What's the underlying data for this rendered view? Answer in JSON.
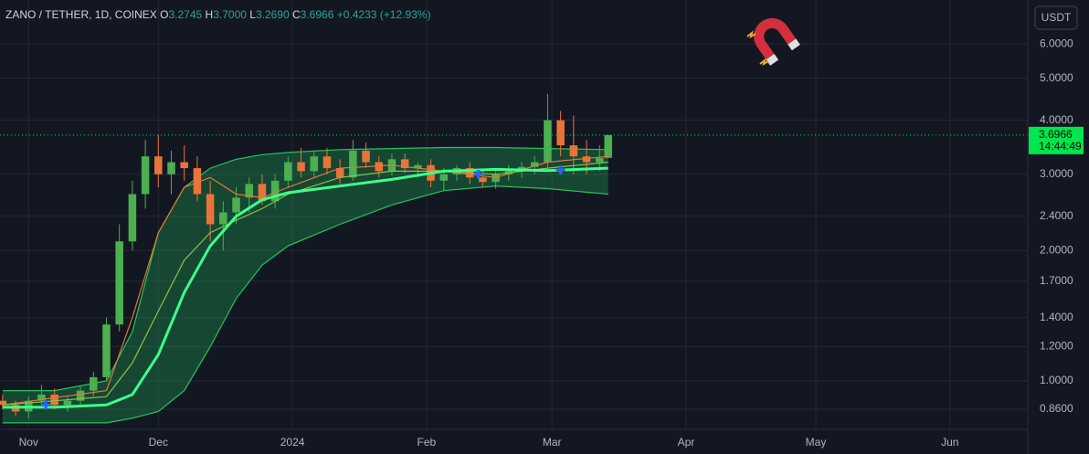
{
  "header": {
    "symbol": "ZANO / TETHER, 1D, COINEX",
    "o": "O",
    "o_value": "3.2745",
    "h": "H",
    "h_value": "3.7000",
    "l": "L",
    "l_value": "3.2690",
    "c": "C",
    "c_value": "3.6966",
    "change": "+0.4233 (+12.93%)"
  },
  "currency_button": "USDT",
  "chart_data": {
    "type": "candlestick",
    "log_scale": true,
    "grid": true,
    "ylim": [
      0.773,
      7.58
    ],
    "yticks": [
      {
        "value": 0.86,
        "label": "0.8600"
      },
      {
        "value": 1.0,
        "label": "1.0000"
      },
      {
        "value": 1.2,
        "label": "1.2000"
      },
      {
        "value": 1.4,
        "label": "1.4000"
      },
      {
        "value": 1.7,
        "label": "1.7000"
      },
      {
        "value": 2.0,
        "label": "2.0000"
      },
      {
        "value": 2.4,
        "label": "2.4000"
      },
      {
        "value": 3.0,
        "label": "3.0000"
      },
      {
        "value": 4.0,
        "label": "4.0000"
      },
      {
        "value": 5.0,
        "label": "5.0000"
      },
      {
        "value": 6.0,
        "label": "6.0000"
      }
    ],
    "xlim": [
      -0.6,
      237
    ],
    "xticks": [
      {
        "value": 6,
        "label": "Nov"
      },
      {
        "value": 36,
        "label": "Dec"
      },
      {
        "value": 67,
        "label": "2024"
      },
      {
        "value": 98,
        "label": "Feb"
      },
      {
        "value": 127,
        "label": "Mar"
      },
      {
        "value": 158,
        "label": "Apr"
      },
      {
        "value": 188,
        "label": "May"
      },
      {
        "value": 219,
        "label": "Jun"
      }
    ],
    "up_color": "#4caf50",
    "down_color": "#e8743b",
    "x": [
      0,
      3,
      6,
      9,
      12,
      15,
      18,
      21,
      24,
      27,
      30,
      33,
      36,
      39,
      42,
      45,
      48,
      51,
      54,
      57,
      60,
      63,
      66,
      69,
      72,
      75,
      78,
      81,
      84,
      87,
      90,
      93,
      96,
      99,
      102,
      105,
      108,
      111,
      114,
      117,
      120,
      123,
      126,
      129,
      132,
      135,
      138,
      140
    ],
    "open": [
      0.9,
      0.88,
      0.85,
      0.9,
      0.93,
      0.88,
      0.9,
      0.95,
      1.02,
      1.35,
      2.1,
      2.7,
      3.3,
      3.0,
      3.2,
      3.1,
      2.7,
      2.3,
      2.45,
      2.65,
      2.85,
      2.6,
      2.9,
      3.2,
      3.05,
      3.3,
      3.1,
      2.95,
      3.4,
      3.2,
      3.05,
      3.25,
      3.1,
      3.15,
      2.9,
      3.0,
      3.1,
      2.95,
      2.88,
      3.0,
      3.05,
      3.12,
      3.2,
      4.0,
      3.5,
      3.3,
      3.2,
      3.2745
    ],
    "high": [
      0.93,
      0.9,
      0.92,
      0.98,
      0.96,
      0.92,
      0.97,
      1.05,
      1.4,
      2.3,
      2.9,
      3.6,
      3.7,
      3.4,
      3.5,
      3.3,
      2.9,
      2.6,
      2.8,
      2.95,
      3.0,
      3.0,
      3.3,
      3.45,
      3.4,
      3.45,
      3.25,
      3.6,
      3.55,
      3.3,
      3.35,
      3.35,
      3.2,
      3.25,
      3.1,
      3.15,
      3.2,
      3.05,
      3.05,
      3.15,
      3.2,
      3.3,
      4.6,
      4.2,
      4.1,
      3.6,
      3.5,
      3.7
    ],
    "low": [
      0.86,
      0.83,
      0.82,
      0.87,
      0.86,
      0.85,
      0.88,
      0.92,
      1.0,
      1.3,
      2.0,
      2.5,
      2.8,
      2.7,
      2.9,
      2.6,
      2.1,
      2.0,
      2.3,
      2.45,
      2.55,
      2.5,
      2.8,
      2.95,
      2.95,
      3.0,
      2.85,
      2.9,
      3.1,
      2.95,
      2.98,
      3.02,
      2.95,
      2.8,
      2.75,
      2.9,
      2.85,
      2.8,
      2.78,
      2.9,
      2.95,
      3.0,
      3.1,
      3.3,
      3.0,
      3.0,
      3.05,
      3.269
    ],
    "close": [
      0.88,
      0.85,
      0.9,
      0.93,
      0.88,
      0.9,
      0.95,
      1.02,
      1.35,
      2.1,
      2.7,
      3.3,
      3.0,
      3.2,
      3.1,
      2.7,
      2.3,
      2.45,
      2.65,
      2.85,
      2.6,
      2.9,
      3.2,
      3.05,
      3.3,
      3.1,
      2.95,
      3.4,
      3.2,
      3.05,
      3.25,
      3.1,
      3.15,
      2.9,
      3.0,
      3.1,
      2.95,
      2.88,
      3.0,
      3.05,
      3.12,
      3.2,
      4.0,
      3.5,
      3.3,
      3.2,
      3.27,
      3.6966
    ],
    "band": {
      "color": "#22c55e",
      "x": [
        0,
        12,
        24,
        30,
        36,
        42,
        48,
        54,
        60,
        66,
        78,
        90,
        102,
        114,
        126,
        140
      ],
      "upper": [
        0.95,
        0.95,
        1.0,
        1.3,
        2.2,
        2.8,
        3.1,
        3.25,
        3.33,
        3.37,
        3.42,
        3.44,
        3.46,
        3.46,
        3.44,
        3.42
      ],
      "center": [
        0.87,
        0.87,
        0.88,
        0.93,
        1.15,
        1.6,
        2.05,
        2.4,
        2.62,
        2.72,
        2.82,
        2.92,
        3.05,
        3.08,
        3.06,
        3.1
      ],
      "lower": [
        0.8,
        0.8,
        0.8,
        0.82,
        0.85,
        0.95,
        1.2,
        1.55,
        1.85,
        2.05,
        2.3,
        2.55,
        2.75,
        2.82,
        2.78,
        2.7
      ]
    },
    "series": [
      {
        "color": "#e8743b",
        "x": [
          0,
          24,
          30,
          36,
          42,
          48,
          54,
          60,
          66,
          78,
          90,
          102,
          114,
          126,
          140
        ],
        "values": [
          0.88,
          0.95,
          1.4,
          2.2,
          2.8,
          2.95,
          2.7,
          2.65,
          2.8,
          3.1,
          3.15,
          3.05,
          2.95,
          3.2,
          3.3
        ]
      },
      {
        "color": "#8bc34a",
        "x": [
          0,
          24,
          30,
          36,
          42,
          48,
          54,
          60,
          66,
          78,
          90,
          102,
          114,
          126,
          140
        ],
        "values": [
          0.88,
          0.92,
          1.1,
          1.45,
          1.9,
          2.2,
          2.35,
          2.5,
          2.7,
          2.95,
          3.05,
          3.05,
          3.0,
          3.1,
          3.2
        ]
      }
    ],
    "signals": {
      "color": "#2962ff",
      "x": [
        10,
        110,
        129
      ],
      "values": [
        0.88,
        3.0,
        3.07
      ]
    },
    "last_price": {
      "value": 3.6966,
      "label": "3.6966",
      "color": "#00e64d"
    },
    "countdown": "14:44:49"
  }
}
